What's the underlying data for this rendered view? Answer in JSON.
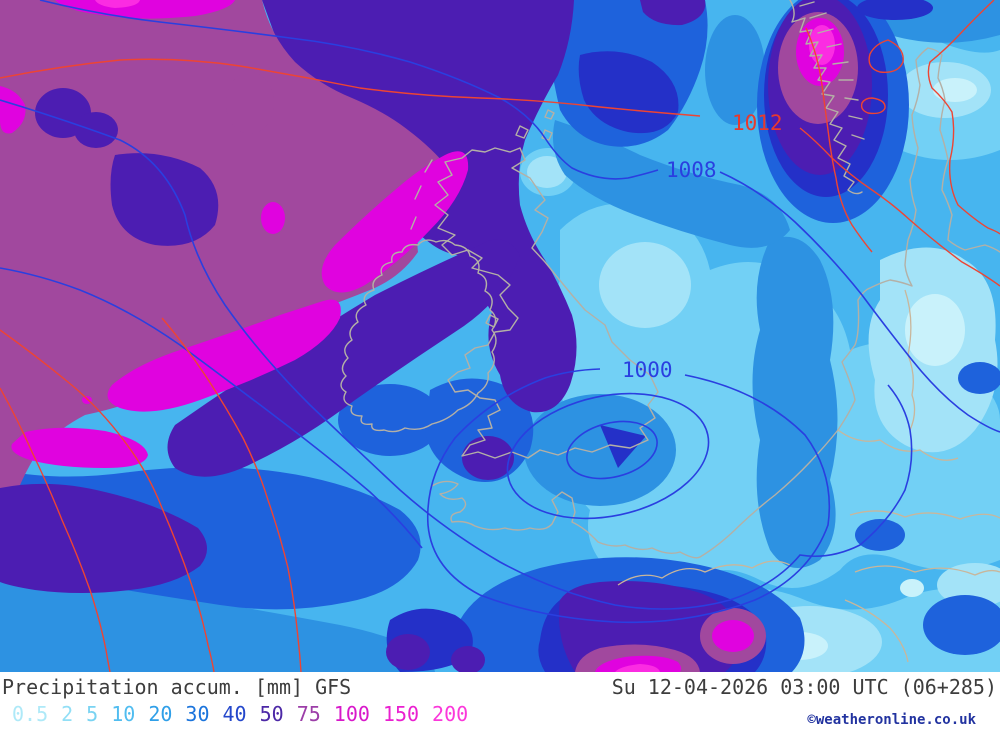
{
  "footer": {
    "title": "Precipitation accum. [mm] GFS",
    "datetime": "Su 12-04-2026 03:00 UTC (06+285)",
    "copyright": "©weatheronline.co.uk",
    "text_color": "#3d3d3d",
    "copyright_color": "#2233a0"
  },
  "legend": {
    "units": "mm",
    "values": [
      "0.5",
      "2",
      "5",
      "10",
      "20",
      "30",
      "40",
      "50",
      "75",
      "100",
      "150",
      "200"
    ],
    "colors": [
      "#aee9f8",
      "#92dff6",
      "#79d3f2",
      "#51bdf0",
      "#2f9fe8",
      "#1b74dc",
      "#2447cb",
      "#4c28a6",
      "#9c3ea8",
      "#d818ca",
      "#ea1fd0",
      "#fb38da"
    ]
  },
  "map": {
    "model": "GFS",
    "region": "United Kingdom / Ireland / North Sea",
    "isobar_labels": [
      {
        "text": "1012",
        "color": "#e8392e"
      },
      {
        "text": "1008",
        "color": "#2a3fe0"
      },
      {
        "text": "1000",
        "color": "#2a3fe0"
      }
    ],
    "contour_colors": {
      "isobar_red": "#ee4433",
      "isobar_blue": "#2a3fe0",
      "coastline": "#b4b0a6",
      "border": "#c9b69b"
    },
    "precip_palette": {
      "pale_cyan": "#c9f2fb",
      "light_cyan": "#a3e3f8",
      "cyan_blue": "#72d0f5",
      "light_blue": "#47b5ef",
      "medium_blue": "#2d92e2",
      "royal_blue": "#1e62dc",
      "navy": "#2430c8",
      "violet": "#4c1db2",
      "mauve": "#a1489e",
      "magenta": "#e003df",
      "bright_magenta": "#fb2ce2"
    }
  }
}
